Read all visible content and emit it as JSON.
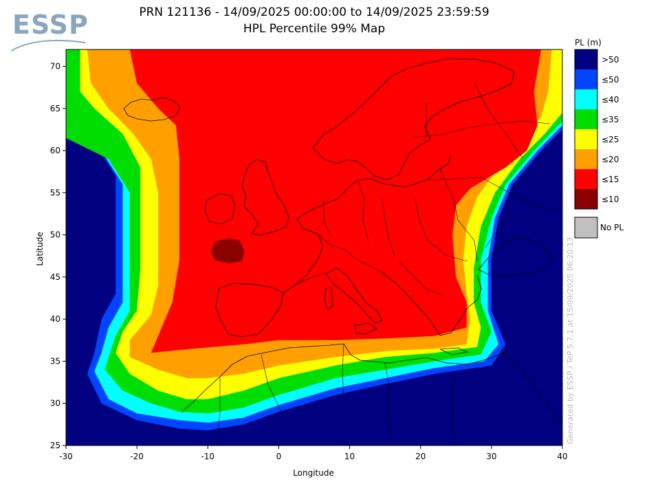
{
  "logo": {
    "text": "ESSP"
  },
  "header": {
    "line1": "PRN 121136 - 14/09/2025 00:00:00 to 14/09/2025 23:59:59",
    "line2": "HPL Percentile 99% Map"
  },
  "watermark": "Generated by ESSP / TeP 5.7.1 at 15/09/2025 06:20:13",
  "chart_data": {
    "type": "heatmap",
    "xlabel": "Longitude",
    "ylabel": "Latitude",
    "xlim": [
      -30,
      40
    ],
    "ylim": [
      25,
      72
    ],
    "x_ticks": [
      -30,
      -20,
      -10,
      0,
      10,
      20,
      30,
      40
    ],
    "y_ticks": [
      25,
      30,
      35,
      40,
      45,
      50,
      55,
      60,
      65,
      70
    ],
    "grid": false,
    "legend_position": "right",
    "legend": {
      "title": "PL (m)",
      "levels": [
        {
          "label": ">50",
          "color": "#000080"
        },
        {
          "label": "≤50",
          "color": "#0044ff"
        },
        {
          "label": "≤40",
          "color": "#00ffff"
        },
        {
          "label": "≤35",
          "color": "#00dd00"
        },
        {
          "label": "≤25",
          "color": "#ffff00"
        },
        {
          "label": "≤20",
          "color": "#ffa000"
        },
        {
          "label": "≤15",
          "color": "#ff0000"
        },
        {
          "label": "≤10",
          "color": "#8b0000"
        }
      ],
      "no_pl": {
        "label": "No PL",
        "color": "#c0c0c0"
      }
    },
    "regions": [
      {
        "level": "≤50",
        "polygon": [
          [
            -30,
            63.5
          ],
          [
            -26,
            61
          ],
          [
            -23,
            57
          ],
          [
            -23,
            52
          ],
          [
            -23,
            47
          ],
          [
            -23,
            43
          ],
          [
            -25,
            40
          ],
          [
            -26,
            36
          ],
          [
            -27,
            33.5
          ],
          [
            -25,
            30
          ],
          [
            -20,
            28
          ],
          [
            -14,
            27
          ],
          [
            -10,
            26.8
          ],
          [
            -5,
            27.5
          ],
          [
            0,
            29
          ],
          [
            8,
            31
          ],
          [
            15,
            32.3
          ],
          [
            22,
            33.5
          ],
          [
            30,
            34.5
          ],
          [
            32,
            37
          ],
          [
            30,
            41
          ],
          [
            30,
            47
          ],
          [
            31,
            52
          ],
          [
            33,
            56
          ],
          [
            37,
            60
          ],
          [
            40,
            62.5
          ],
          [
            40,
            72
          ],
          [
            -30,
            72
          ]
        ]
      },
      {
        "level": "≤40",
        "polygon": [
          [
            -30,
            62.5
          ],
          [
            -25,
            60
          ],
          [
            -22,
            56
          ],
          [
            -22,
            51
          ],
          [
            -22,
            46
          ],
          [
            -22,
            42
          ],
          [
            -24,
            39
          ],
          [
            -25,
            36
          ],
          [
            -26,
            33.8
          ],
          [
            -24,
            30.5
          ],
          [
            -20,
            28.8
          ],
          [
            -14,
            28
          ],
          [
            -10,
            27.7
          ],
          [
            -5,
            28.3
          ],
          [
            0,
            29.8
          ],
          [
            8,
            31.8
          ],
          [
            15,
            33
          ],
          [
            22,
            34.2
          ],
          [
            29,
            35
          ],
          [
            31,
            37
          ],
          [
            29.5,
            41
          ],
          [
            29.5,
            47
          ],
          [
            30.5,
            52
          ],
          [
            32.5,
            56
          ],
          [
            36.5,
            60
          ],
          [
            40,
            63
          ],
          [
            40,
            72
          ],
          [
            -30,
            72
          ]
        ]
      },
      {
        "level": "≤35",
        "polygon": [
          [
            -30,
            61.5
          ],
          [
            -24,
            59
          ],
          [
            -21,
            55
          ],
          [
            -21,
            50
          ],
          [
            -21,
            45
          ],
          [
            -21,
            41
          ],
          [
            -23,
            38
          ],
          [
            -24,
            35.5
          ],
          [
            -24.5,
            34
          ],
          [
            -22,
            31.5
          ],
          [
            -18,
            30
          ],
          [
            -14,
            29
          ],
          [
            -10,
            28.8
          ],
          [
            -5,
            29.5
          ],
          [
            0,
            31
          ],
          [
            8,
            33
          ],
          [
            15,
            34
          ],
          [
            22,
            35
          ],
          [
            28.5,
            35.8
          ],
          [
            30,
            38.5
          ],
          [
            28.5,
            42
          ],
          [
            28.5,
            47
          ],
          [
            30,
            52
          ],
          [
            32,
            56
          ],
          [
            36,
            60
          ],
          [
            40,
            63.5
          ],
          [
            40,
            72
          ],
          [
            -30,
            72
          ]
        ]
      },
      {
        "level": "≤25",
        "polygon": [
          [
            -28,
            72
          ],
          [
            -28,
            67
          ],
          [
            -26,
            65
          ],
          [
            -22,
            62
          ],
          [
            -19.5,
            58
          ],
          [
            -19.5,
            52
          ],
          [
            -19.5,
            46
          ],
          [
            -20,
            41
          ],
          [
            -22,
            38.5
          ],
          [
            -23,
            36
          ],
          [
            -21,
            33.5
          ],
          [
            -17,
            31.5
          ],
          [
            -13,
            30.5
          ],
          [
            -10,
            30.5
          ],
          [
            -5,
            31.5
          ],
          [
            0,
            33
          ],
          [
            8,
            34.5
          ],
          [
            15,
            35.5
          ],
          [
            22,
            36
          ],
          [
            28,
            36.7
          ],
          [
            28.5,
            39
          ],
          [
            27.5,
            42
          ],
          [
            27.5,
            46
          ],
          [
            28.5,
            51
          ],
          [
            30.5,
            55
          ],
          [
            34,
            59
          ],
          [
            37.5,
            62
          ],
          [
            40,
            64.5
          ],
          [
            40,
            72
          ]
        ]
      },
      {
        "level": "≤20",
        "polygon": [
          [
            -27,
            72
          ],
          [
            -26.5,
            68
          ],
          [
            -24,
            65
          ],
          [
            -20.5,
            62
          ],
          [
            -18,
            59
          ],
          [
            -17,
            55
          ],
          [
            -17,
            50
          ],
          [
            -17,
            44
          ],
          [
            -18,
            40.5
          ],
          [
            -21,
            37.5
          ],
          [
            -21,
            35.5
          ],
          [
            -17,
            34
          ],
          [
            -13,
            33
          ],
          [
            -10,
            33
          ],
          [
            -5,
            33.5
          ],
          [
            0,
            34.5
          ],
          [
            8,
            35.5
          ],
          [
            15,
            36.2
          ],
          [
            22,
            36.5
          ],
          [
            26.5,
            37
          ],
          [
            27,
            40
          ],
          [
            26.5,
            43
          ],
          [
            26,
            47
          ],
          [
            26.5,
            51
          ],
          [
            28,
            54.5
          ],
          [
            31,
            58
          ],
          [
            34.5,
            61.5
          ],
          [
            37,
            64
          ],
          [
            38,
            67
          ],
          [
            38.5,
            72
          ]
        ]
      },
      {
        "level": "≤15",
        "polygon": [
          [
            -21,
            72
          ],
          [
            -20,
            68
          ],
          [
            -17,
            65
          ],
          [
            -14.5,
            63
          ],
          [
            -14,
            59
          ],
          [
            -14,
            52
          ],
          [
            -14,
            47
          ],
          [
            -15,
            42
          ],
          [
            -17,
            38
          ],
          [
            -18,
            36
          ],
          [
            -12,
            36.5
          ],
          [
            -5,
            37
          ],
          [
            0,
            37.5
          ],
          [
            8,
            37.5
          ],
          [
            15,
            37.7
          ],
          [
            22,
            38
          ],
          [
            26.5,
            39
          ],
          [
            26.5,
            42
          ],
          [
            25,
            45
          ],
          [
            24.5,
            50
          ],
          [
            25,
            53.5
          ],
          [
            27,
            55.5
          ],
          [
            32,
            58
          ],
          [
            35,
            60
          ],
          [
            36.5,
            63
          ],
          [
            36,
            67
          ],
          [
            37,
            72
          ]
        ]
      },
      {
        "level": "≤10",
        "polygon": [
          [
            -9.5,
            48
          ],
          [
            -9,
            49.2
          ],
          [
            -7,
            49.6
          ],
          [
            -5.5,
            49.3
          ],
          [
            -4.8,
            48
          ],
          [
            -5.2,
            46.9
          ],
          [
            -7,
            46.6
          ],
          [
            -9,
            47
          ]
        ]
      }
    ]
  }
}
